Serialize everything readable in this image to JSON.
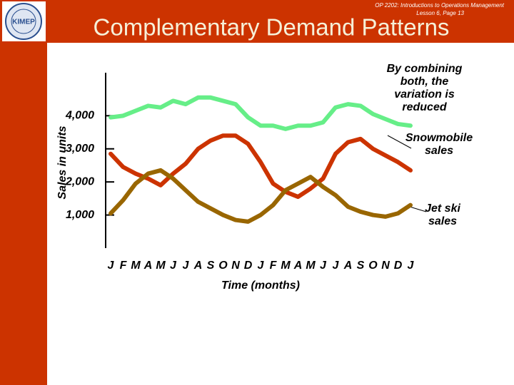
{
  "header": {
    "course": "OP 2202: Introductions to Operations Management",
    "lesson": "Lesson 6, Page 13"
  },
  "logo": {
    "text": "KIMEP"
  },
  "chart_data": {
    "type": "line",
    "title": "Complementary Demand Patterns",
    "x_label": "Time (months)",
    "y_label": "Sales in units",
    "categories": [
      "J",
      "F",
      "M",
      "A",
      "M",
      "J",
      "J",
      "A",
      "S",
      "O",
      "N",
      "D",
      "J",
      "F",
      "M",
      "A",
      "M",
      "J",
      "J",
      "A",
      "S",
      "O",
      "N",
      "D",
      "J"
    ],
    "series": [
      {
        "name": "By combining both, the variation is reduced",
        "color": "#66ee88",
        "values": [
          3950,
          4000,
          4150,
          4300,
          4250,
          4450,
          4350,
          4550,
          4550,
          4450,
          4350,
          3950,
          3700,
          3700,
          3600,
          3700,
          3700,
          3800,
          4250,
          4350,
          4300,
          4050,
          3900,
          3750,
          3700
        ]
      },
      {
        "name": "Snowmobile sales",
        "color": "#cc3300",
        "values": [
          2850,
          2450,
          2250,
          2100,
          1900,
          2250,
          2550,
          3000,
          3250,
          3400,
          3400,
          3150,
          2600,
          1950,
          1700,
          1550,
          1800,
          2100,
          2850,
          3200,
          3300,
          3000,
          2800,
          2600,
          2350
        ]
      },
      {
        "name": "Jet ski sales",
        "color": "#996600",
        "values": [
          1050,
          1450,
          1950,
          2250,
          2350,
          2100,
          1750,
          1400,
          1200,
          1000,
          850,
          800,
          1000,
          1300,
          1750,
          1950,
          2150,
          1850,
          1600,
          1250,
          1100,
          1000,
          950,
          1050,
          1300
        ]
      }
    ],
    "ylim": [
      0,
      5300
    ],
    "yticks": [
      {
        "value": 1000,
        "label": "1,000"
      },
      {
        "value": 2000,
        "label": "2,000"
      },
      {
        "value": 3000,
        "label": "3,000"
      },
      {
        "value": 4000,
        "label": "4,000"
      }
    ],
    "grid": false
  }
}
